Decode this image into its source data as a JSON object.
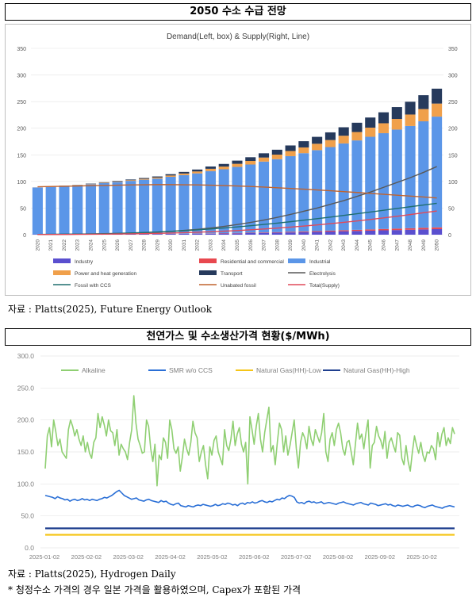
{
  "section1": {
    "title": "2050 수소 수급 전망",
    "source": "자료 : Platts(2025), Future Energy Outlook"
  },
  "section2": {
    "title": "천연가스 및 수소생산가격 현황($/MWh)",
    "source": "자료 : Platts(2025), Hydrogen Daily",
    "note": "* 청정수소 가격의 경우 일본 가격을 활용하였으며, Capex가 포함된 가격"
  },
  "chart_data": [
    {
      "type": "bar",
      "title": "Demand(Left, box) & Supply(Right, Line)",
      "categories": [
        "2020",
        "2021",
        "2022",
        "2023",
        "2024",
        "2025",
        "2026",
        "2027",
        "2028",
        "2029",
        "2030",
        "2031",
        "2032",
        "2033",
        "2034",
        "2035",
        "2036",
        "2037",
        "2038",
        "2039",
        "2040",
        "2041",
        "2042",
        "2043",
        "2044",
        "2045",
        "2046",
        "2047",
        "2048",
        "2049",
        "2050"
      ],
      "ylim": [
        0,
        350
      ],
      "yticks": [
        "0",
        "50",
        "100",
        "150",
        "200",
        "250",
        "300",
        "350"
      ],
      "stacked_series": [
        {
          "name": "Industry",
          "color": "#5a4fcf",
          "values": [
            0.6,
            0.6,
            0.6,
            0.7,
            0.7,
            0.8,
            0.9,
            1,
            1.1,
            1.2,
            1.4,
            1.6,
            1.8,
            2,
            2.3,
            2.6,
            3,
            3.4,
            3.8,
            4.3,
            4.8,
            5.3,
            5.9,
            6.5,
            7,
            7.6,
            8.2,
            8.7,
            9.3,
            9.9,
            10.5
          ]
        },
        {
          "name": "Residential and commercial",
          "color": "#e8484f",
          "values": [
            0,
            0,
            0,
            0,
            0,
            0.1,
            0.1,
            0.1,
            0.2,
            0.2,
            0.3,
            0.3,
            0.4,
            0.5,
            0.6,
            0.7,
            0.8,
            0.9,
            1,
            1.2,
            1.3,
            1.5,
            1.7,
            1.9,
            2.1,
            2.3,
            2.5,
            2.7,
            2.9,
            3.1,
            3.3
          ]
        },
        {
          "name": "Industrial",
          "color": "#5b96e8",
          "values": [
            88,
            89,
            91,
            92,
            94,
            96,
            98,
            100,
            102,
            104,
            107,
            110,
            113,
            117,
            120,
            124,
            128,
            133,
            137,
            142,
            147,
            152,
            157,
            163,
            168,
            174,
            180,
            186,
            192,
            200,
            208
          ]
        },
        {
          "name": "Power and heat generation",
          "color": "#f0a04b",
          "values": [
            0.1,
            0.2,
            0.3,
            0.4,
            0.6,
            0.8,
            1,
            1.3,
            1.6,
            2,
            2.5,
            3,
            3.6,
            4.3,
            5,
            5.8,
            6.7,
            7.6,
            8.6,
            9.7,
            10.8,
            12,
            13.2,
            14.5,
            15.8,
            17.2,
            18.6,
            20,
            21.5,
            23,
            24.5
          ]
        },
        {
          "name": "Transport",
          "color": "#263a5c",
          "values": [
            0.1,
            0.2,
            0.3,
            0.4,
            0.6,
            0.8,
            1,
            1.3,
            1.6,
            2,
            2.5,
            3,
            3.6,
            4.3,
            5,
            6,
            7,
            8,
            9.2,
            10.4,
            11.7,
            13,
            14.4,
            15.9,
            17.4,
            19,
            20.6,
            22.3,
            24,
            26,
            28
          ]
        }
      ],
      "lines": [
        {
          "name": "Electrolysis",
          "color": "#595959",
          "values": [
            0.5,
            0.6,
            0.8,
            1,
            1.3,
            1.7,
            2.2,
            2.9,
            3.8,
            4.9,
            6.3,
            8,
            10,
            12.5,
            15.5,
            19,
            23,
            27.5,
            32.5,
            38,
            44,
            50,
            57,
            64,
            72,
            80,
            89,
            98,
            107,
            117,
            128
          ]
        },
        {
          "name": "Fossil with CCS",
          "color": "#1f6f6f",
          "values": [
            0.5,
            0.6,
            0.8,
            1.1,
            1.4,
            1.9,
            2.5,
            3.2,
            4.1,
            5.1,
            6.3,
            7.6,
            9.1,
            10.8,
            12.6,
            14.6,
            16.8,
            19.2,
            21.7,
            24.4,
            27.2,
            30.1,
            33.1,
            36.2,
            39.4,
            42.6,
            45.9,
            49.2,
            52.5,
            55.8,
            59
          ]
        },
        {
          "name": "Unabated fossil",
          "color": "#c0632e",
          "values": [
            90,
            90.5,
            91,
            91.5,
            92,
            92.5,
            93,
            93.5,
            93.8,
            94,
            94,
            93.8,
            93.5,
            93,
            92.3,
            91.5,
            90.5,
            89.4,
            88.2,
            86.9,
            85.5,
            84,
            82.5,
            80.9,
            79.3,
            77.6,
            75.9,
            74.2,
            72.5,
            70.8,
            69
          ]
        },
        {
          "name": "Total(Supply)",
          "color": "#e04a5a",
          "values": [
            0.3,
            0.4,
            0.5,
            0.6,
            0.8,
            1,
            1.3,
            1.6,
            2,
            2.5,
            3.1,
            3.8,
            4.6,
            5.5,
            6.6,
            7.8,
            9.2,
            10.7,
            12.4,
            14.2,
            16.2,
            18.4,
            20.7,
            23.2,
            25.8,
            28.6,
            31.5,
            34.6,
            37.8,
            41.2,
            44.5
          ]
        }
      ],
      "legend": [
        "Industry",
        "Residential and commercial",
        "Industrial",
        "Power and heat generation",
        "Transport",
        "Electrolysis",
        "Fossil with CCS",
        "Unabated fossil",
        "Total(Supply)"
      ]
    },
    {
      "type": "line",
      "ylim": [
        0,
        300
      ],
      "yticks": [
        "0.0",
        "50.0",
        "100.0",
        "150.0",
        "200.0",
        "250.0",
        "300.0"
      ],
      "xticks": [
        "2025-01-02",
        "2025-02-02",
        "2025-03-02",
        "2025-04-02",
        "2025-05-02",
        "2025-06-02",
        "2025-07-02",
        "2025-08-02",
        "2025-09-02",
        "2025-10-02"
      ],
      "x_range": [
        "2025-01-02",
        "2025-10-27"
      ],
      "legend_placement": "top",
      "series": [
        {
          "name": "Alkaline",
          "color": "#8fcf72",
          "values": [
            124,
            175,
            188,
            158,
            200,
            182,
            160,
            170,
            150,
            145,
            140,
            185,
            200,
            190,
            175,
            185,
            170,
            160,
            175,
            150,
            165,
            148,
            140,
            165,
            172,
            210,
            188,
            205,
            192,
            175,
            200,
            183,
            180,
            160,
            185,
            145,
            162,
            155,
            150,
            138,
            165,
            185,
            238,
            195,
            170,
            160,
            148,
            150,
            200,
            190,
            155,
            135,
            162,
            97,
            145,
            138,
            172,
            165,
            140,
            200,
            185,
            155,
            148,
            158,
            120,
            142,
            170,
            155,
            145,
            165,
            198,
            180,
            172,
            135,
            150,
            160,
            130,
            108,
            158,
            145,
            168,
            175,
            150,
            140,
            130,
            185,
            160,
            152,
            170,
            198,
            160,
            178,
            188,
            162,
            150,
            165,
            100,
            205,
            185,
            162,
            190,
            210,
            170,
            150,
            180,
            200,
            220,
            150,
            160,
            130,
            165,
            195,
            185,
            150,
            175,
            145,
            160,
            180,
            200,
            155,
            125,
            165,
            180,
            172,
            155,
            190,
            170,
            160,
            185,
            175,
            165,
            180,
            210,
            150,
            135,
            170,
            180,
            160,
            185,
            195,
            180,
            155,
            145,
            165,
            168,
            150,
            130,
            162,
            195,
            170,
            178,
            155,
            180,
            200,
            125,
            160,
            165,
            190,
            175,
            168,
            155,
            182,
            140,
            165,
            172,
            160,
            150,
            180,
            176,
            140,
            130,
            160,
            135,
            120,
            150,
            175,
            160,
            148,
            165,
            145,
            135,
            150,
            148,
            160,
            155,
            138,
            180,
            158,
            178,
            188,
            160,
            172,
            163,
            188,
            178
          ]
        },
        {
          "name": "SMR w/o CCS",
          "color": "#2a6fd6",
          "values": [
            82,
            81,
            80,
            79,
            77,
            80,
            78,
            77,
            75,
            76,
            73,
            75,
            76,
            74,
            75,
            77,
            75,
            76,
            74,
            76,
            75,
            74,
            76,
            77,
            79,
            78,
            80,
            82,
            85,
            88,
            90,
            86,
            82,
            80,
            78,
            76,
            77,
            78,
            75,
            74,
            73,
            75,
            76,
            74,
            73,
            72,
            71,
            74,
            72,
            73,
            70,
            68,
            67,
            69,
            70,
            66,
            65,
            64,
            66,
            65,
            64,
            66,
            67,
            66,
            68,
            67,
            66,
            65,
            66,
            68,
            66,
            67,
            69,
            68,
            70,
            69,
            67,
            68,
            66,
            69,
            70,
            68,
            71,
            70,
            72,
            70,
            71,
            73,
            74,
            72,
            71,
            73,
            72,
            74,
            76,
            75,
            78,
            77,
            80,
            82,
            81,
            79,
            72,
            70,
            71,
            69,
            72,
            73,
            71,
            72,
            70,
            71,
            72,
            69,
            70,
            71,
            70,
            69,
            68,
            70,
            71,
            72,
            70,
            69,
            68,
            67,
            69,
            70,
            71,
            69,
            68,
            67,
            70,
            69,
            68,
            66,
            67,
            68,
            69,
            67,
            68,
            66,
            65,
            67,
            66,
            65,
            66,
            67,
            65,
            64,
            66,
            67,
            66,
            64,
            63,
            65,
            66,
            67,
            65,
            64,
            63,
            62,
            64,
            65,
            66,
            65,
            64
          ]
        },
        {
          "name": "Natural Gas(HH)-Low",
          "color": "#f5c518",
          "values": [
            20.5,
            20.5
          ]
        },
        {
          "name": "Natural Gas(HH)-High",
          "color": "#1f3f8f",
          "values": [
            30.5,
            30.5
          ]
        }
      ]
    }
  ]
}
